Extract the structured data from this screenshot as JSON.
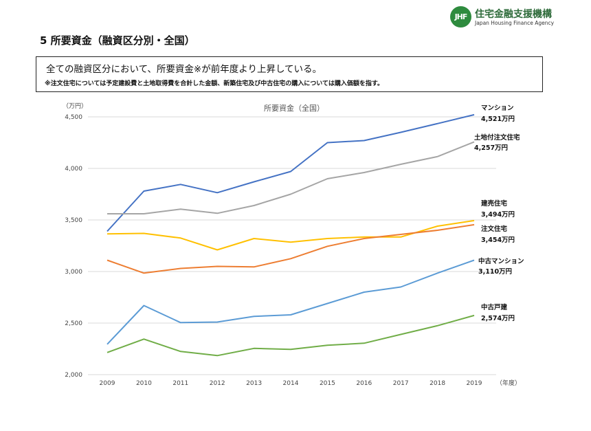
{
  "header": {
    "logo_mark": "JHF",
    "logo_jp": "住宅金融支援機構",
    "logo_en": "Japan Housing Finance Agency"
  },
  "page": {
    "section_title": "5  所要資金（融資区分別・全国）",
    "summary_main": "全ての融資区分において、所要資金※が前年度より上昇している。",
    "summary_note": "※注文住宅については予定建設費と土地取得費を合計した金額、新築住宅及び中古住宅の購入については購入価額を指す。"
  },
  "chart_data": {
    "type": "line",
    "title": "所要資金（全国）",
    "ylabel": "（万円）",
    "xlabel": "（年度）",
    "ylim": [
      2000,
      4500
    ],
    "yticks": [
      2000,
      2500,
      3000,
      3500,
      4000,
      4500
    ],
    "ytick_labels": [
      "2,000",
      "2,500",
      "3,000",
      "3,500",
      "4,000",
      "4,500"
    ],
    "grid": true,
    "categories": [
      "2009",
      "2010",
      "2011",
      "2012",
      "2013",
      "2014",
      "2015",
      "2016",
      "2017",
      "2018",
      "2019"
    ],
    "series": [
      {
        "name": "マンション",
        "end_label": "4,521万円",
        "color": "#4472c4",
        "values": [
          3390,
          3780,
          3845,
          3765,
          3870,
          3970,
          4250,
          4270,
          4350,
          4435,
          4521
        ]
      },
      {
        "name": "土地付注文住宅",
        "end_label": "4,257万円",
        "color": "#a5a5a5",
        "values": [
          3560,
          3560,
          3605,
          3565,
          3640,
          3750,
          3900,
          3960,
          4040,
          4115,
          4257
        ]
      },
      {
        "name": "建売住宅",
        "end_label": "3,494万円",
        "color": "#ffc000",
        "values": [
          3365,
          3370,
          3325,
          3210,
          3320,
          3285,
          3320,
          3335,
          3335,
          3440,
          3494
        ]
      },
      {
        "name": "注文住宅",
        "end_label": "3,454万円",
        "color": "#ed7d31",
        "values": [
          3110,
          2985,
          3030,
          3050,
          3045,
          3125,
          3245,
          3320,
          3360,
          3400,
          3454
        ]
      },
      {
        "name": "中古マンション",
        "end_label": "3,110万円",
        "color": "#5b9bd5",
        "values": [
          2295,
          2670,
          2505,
          2510,
          2565,
          2580,
          2690,
          2800,
          2850,
          2985,
          3110
        ]
      },
      {
        "name": "中古戸建",
        "end_label": "2,574万円",
        "color": "#70ad47",
        "values": [
          2215,
          2345,
          2225,
          2185,
          2255,
          2245,
          2285,
          2305,
          2390,
          2475,
          2574
        ]
      }
    ]
  }
}
